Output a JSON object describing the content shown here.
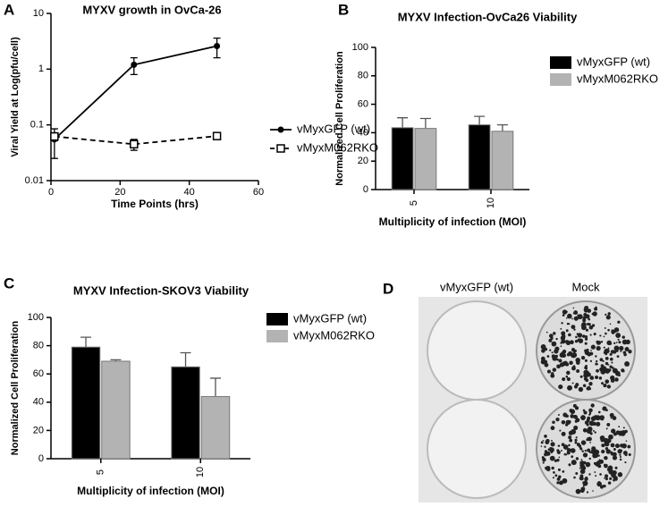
{
  "chart_data": [
    {
      "panel": "A",
      "type": "line",
      "title": "MYXV growth in OvCa-26",
      "xlabel": "Time Points (hrs)",
      "ylabel": "Viral Yield at Log(pfu/cell)",
      "x": [
        1,
        24,
        48
      ],
      "xlim": [
        0,
        60
      ],
      "xticks": [
        0,
        20,
        40,
        60
      ],
      "ylim": [
        0.01,
        10
      ],
      "yticks": [
        0.01,
        0.1,
        1,
        10
      ],
      "log_y": true,
      "series": [
        {
          "name": "vMyxGFP (wt)",
          "color": "#000000",
          "marker": "circle",
          "line_style": "solid",
          "values": [
            0.055,
            1.2,
            2.6
          ],
          "errors": [
            0.03,
            0.4,
            1.0
          ]
        },
        {
          "name": "vMyxM062RKO",
          "color": "#000000",
          "marker": "open-square",
          "line_style": "dashed",
          "values": [
            0.062,
            0.045,
            0.063
          ],
          "errors": [
            0.01,
            0.01,
            0.005
          ]
        }
      ]
    },
    {
      "panel": "B",
      "type": "bar",
      "title": "MYXV Infection-OvCa26 Viability",
      "xlabel": "Multiplicity of infection (MOI)",
      "ylabel": "Normalized Cell Proliferation",
      "categories": [
        "5",
        "10"
      ],
      "ylim": [
        0,
        100
      ],
      "yticks": [
        0,
        20,
        40,
        60,
        80,
        100
      ],
      "series": [
        {
          "name": "vMyxGFP (wt)",
          "color": "#000000",
          "values": [
            43.5,
            45.5
          ],
          "errors": [
            7,
            6
          ]
        },
        {
          "name": "vMyxM062RKO",
          "color": "#b3b3b3",
          "values": [
            43,
            41
          ],
          "errors": [
            7,
            4.5
          ]
        }
      ]
    },
    {
      "panel": "C",
      "type": "bar",
      "title": "MYXV Infection-SKOV3 Viability",
      "xlabel": "Multiplicity of infection (MOI)",
      "ylabel": "Normalized Cell Proliferation",
      "categories": [
        "5",
        "10"
      ],
      "ylim": [
        0,
        100
      ],
      "yticks": [
        0,
        20,
        40,
        60,
        80,
        100
      ],
      "series": [
        {
          "name": "vMyxGFP (wt)",
          "color": "#000000",
          "values": [
            79,
            65
          ],
          "errors": [
            7,
            10
          ]
        },
        {
          "name": "vMyxM062RKO",
          "color": "#b3b3b3",
          "values": [
            69,
            44
          ],
          "errors": [
            1,
            13
          ]
        }
      ]
    }
  ],
  "photo_panel": {
    "panel": "D",
    "columns": [
      "vMyxGFP (wt)",
      "Mock"
    ]
  }
}
